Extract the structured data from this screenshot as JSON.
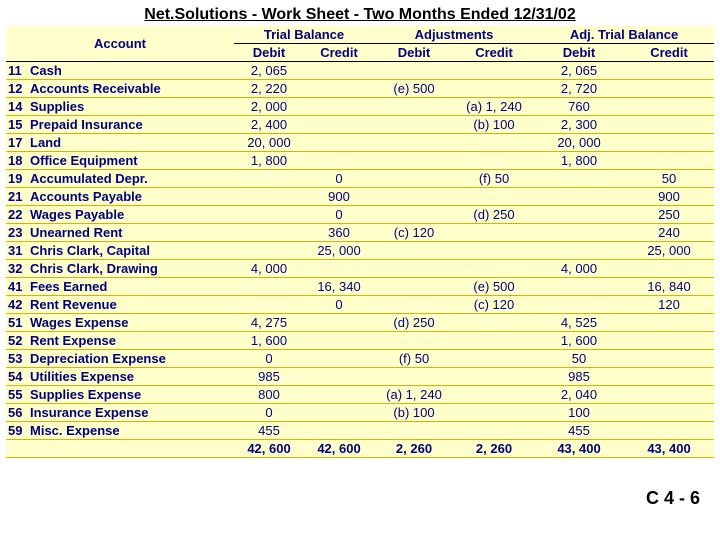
{
  "title": "Net.Solutions - Work Sheet - Two Months Ended 12/31/02",
  "groups": [
    "Trial Balance",
    "Adjustments",
    "Adj. Trial Balance"
  ],
  "col_headers": [
    "Account",
    "Debit",
    "Credit",
    "Debit",
    "Credit",
    "Debit",
    "Credit"
  ],
  "rows": [
    {
      "num": "11",
      "name": "Cash",
      "tb_d": "2, 065",
      "tb_c": "",
      "adj_d": "",
      "adj_c": "",
      "atb_d": "2, 065",
      "atb_c": ""
    },
    {
      "num": "12",
      "name": "Accounts Receivable",
      "tb_d": "2, 220",
      "tb_c": "",
      "adj_d": "(e) 500",
      "adj_c": "",
      "atb_d": "2, 720",
      "atb_c": ""
    },
    {
      "num": "14",
      "name": "Supplies",
      "tb_d": "2, 000",
      "tb_c": "",
      "adj_d": "",
      "adj_c": "(a) 1, 240",
      "atb_d": "760",
      "atb_c": ""
    },
    {
      "num": "15",
      "name": "Prepaid Insurance",
      "tb_d": "2, 400",
      "tb_c": "",
      "adj_d": "",
      "adj_c": "(b) 100",
      "atb_d": "2, 300",
      "atb_c": ""
    },
    {
      "num": "17",
      "name": "Land",
      "tb_d": "20, 000",
      "tb_c": "",
      "adj_d": "",
      "adj_c": "",
      "atb_d": "20, 000",
      "atb_c": ""
    },
    {
      "num": "18",
      "name": "Office Equipment",
      "tb_d": "1, 800",
      "tb_c": "",
      "adj_d": "",
      "adj_c": "",
      "atb_d": "1, 800",
      "atb_c": ""
    },
    {
      "num": "19",
      "name": "Accumulated Depr.",
      "tb_d": "",
      "tb_c": "0",
      "adj_d": "",
      "adj_c": "(f) 50",
      "atb_d": "",
      "atb_c": "50"
    },
    {
      "num": "21",
      "name": "Accounts Payable",
      "tb_d": "",
      "tb_c": "900",
      "adj_d": "",
      "adj_c": "",
      "atb_d": "",
      "atb_c": "900"
    },
    {
      "num": "22",
      "name": "Wages Payable",
      "tb_d": "",
      "tb_c": "0",
      "adj_d": "",
      "adj_c": "(d) 250",
      "atb_d": "",
      "atb_c": "250"
    },
    {
      "num": "23",
      "name": "Unearned Rent",
      "tb_d": "",
      "tb_c": "360",
      "adj_d": "(c) 120",
      "adj_c": "",
      "atb_d": "",
      "atb_c": "240"
    },
    {
      "num": "31",
      "name": "Chris Clark, Capital",
      "tb_d": "",
      "tb_c": "25, 000",
      "adj_d": "",
      "adj_c": "",
      "atb_d": "",
      "atb_c": "25, 000"
    },
    {
      "num": "32",
      "name": "Chris Clark, Drawing",
      "tb_d": "4, 000",
      "tb_c": "",
      "adj_d": "",
      "adj_c": "",
      "atb_d": "4, 000",
      "atb_c": ""
    },
    {
      "num": "41",
      "name": "Fees Earned",
      "tb_d": "",
      "tb_c": "16, 340",
      "adj_d": "",
      "adj_c": "(e) 500",
      "atb_d": "",
      "atb_c": "16, 840"
    },
    {
      "num": "42",
      "name": "Rent Revenue",
      "tb_d": "",
      "tb_c": "0",
      "adj_d": "",
      "adj_c": "(c) 120",
      "atb_d": "",
      "atb_c": "120"
    },
    {
      "num": "51",
      "name": "Wages Expense",
      "tb_d": "4, 275",
      "tb_c": "",
      "adj_d": "(d) 250",
      "adj_c": "",
      "atb_d": "4, 525",
      "atb_c": ""
    },
    {
      "num": "52",
      "name": "Rent Expense",
      "tb_d": "1, 600",
      "tb_c": "",
      "adj_d": "",
      "adj_c": "",
      "atb_d": "1, 600",
      "atb_c": ""
    },
    {
      "num": "53",
      "name": "Depreciation Expense",
      "tb_d": "0",
      "tb_c": "",
      "adj_d": "(f) 50",
      "adj_c": "",
      "atb_d": "50",
      "atb_c": ""
    },
    {
      "num": "54",
      "name": "Utilities Expense",
      "tb_d": "985",
      "tb_c": "",
      "adj_d": "",
      "adj_c": "",
      "atb_d": "985",
      "atb_c": ""
    },
    {
      "num": "55",
      "name": "Supplies Expense",
      "tb_d": "800",
      "tb_c": "",
      "adj_d": "(a) 1, 240",
      "adj_c": "",
      "atb_d": "2, 040",
      "atb_c": ""
    },
    {
      "num": "56",
      "name": "Insurance Expense",
      "tb_d": "0",
      "tb_c": "",
      "adj_d": "(b) 100",
      "adj_c": "",
      "atb_d": "100",
      "atb_c": ""
    },
    {
      "num": "59",
      "name": "Misc. Expense",
      "tb_d": "455",
      "tb_c": "",
      "adj_d": "",
      "adj_c": "",
      "atb_d": "455",
      "atb_c": ""
    }
  ],
  "totals": {
    "tb_d": "42, 600",
    "tb_c": "42, 600",
    "adj_d": "2, 260",
    "adj_c": "2, 260",
    "atb_d": "43, 400",
    "atb_c": "43, 400"
  },
  "footer": "C 4 - 6",
  "colors": {
    "bg": "#ffffcc",
    "text": "#000080",
    "rule": "#e0b000"
  }
}
